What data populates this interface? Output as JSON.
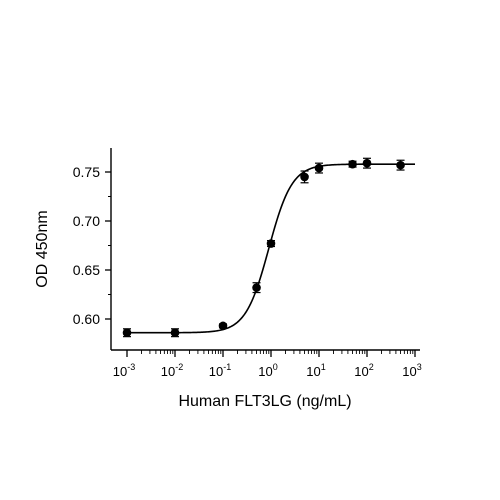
{
  "chart_data": {
    "type": "scatter",
    "title": "",
    "xlabel": "Human FLT3LG (ng/mL)",
    "ylabel": "OD 450nm",
    "xscale": "log",
    "xlim": [
      0.001,
      1000
    ],
    "ylim": [
      0.58,
      0.77
    ],
    "x_ticks": [
      {
        "value": 0.001,
        "base": "10",
        "exp": "-3"
      },
      {
        "value": 0.01,
        "base": "10",
        "exp": "-2"
      },
      {
        "value": 0.1,
        "base": "10",
        "exp": "-1"
      },
      {
        "value": 1,
        "base": "10",
        "exp": "0"
      },
      {
        "value": 10,
        "base": "10",
        "exp": "1"
      },
      {
        "value": 100,
        "base": "10",
        "exp": "2"
      },
      {
        "value": 1000,
        "base": "10",
        "exp": "3"
      }
    ],
    "y_ticks": [
      {
        "value": 0.6,
        "label": "0.60"
      },
      {
        "value": 0.65,
        "label": "0.65"
      },
      {
        "value": 0.7,
        "label": "0.70"
      },
      {
        "value": 0.75,
        "label": "0.75"
      }
    ],
    "series": [
      {
        "points": [
          {
            "x": 0.001,
            "y": 0.586,
            "err": 0.004
          },
          {
            "x": 0.01,
            "y": 0.586,
            "err": 0.004
          },
          {
            "x": 0.1,
            "y": 0.593,
            "err": 0.002
          },
          {
            "x": 0.5,
            "y": 0.632,
            "err": 0.005
          },
          {
            "x": 1,
            "y": 0.677,
            "err": 0.003
          },
          {
            "x": 5,
            "y": 0.745,
            "err": 0.006
          },
          {
            "x": 10,
            "y": 0.754,
            "err": 0.005
          },
          {
            "x": 50,
            "y": 0.758,
            "err": 0.003
          },
          {
            "x": 100,
            "y": 0.759,
            "err": 0.005
          },
          {
            "x": 500,
            "y": 0.757,
            "err": 0.005
          }
        ],
        "fit": {
          "model": "4PL",
          "bottom": 0.586,
          "top": 0.758,
          "ec50": 0.9,
          "hill": 1.8
        }
      }
    ],
    "grid": false,
    "legend": "none",
    "colors": {
      "marker": "#000000",
      "line": "#000000",
      "axis": "#000000"
    }
  }
}
